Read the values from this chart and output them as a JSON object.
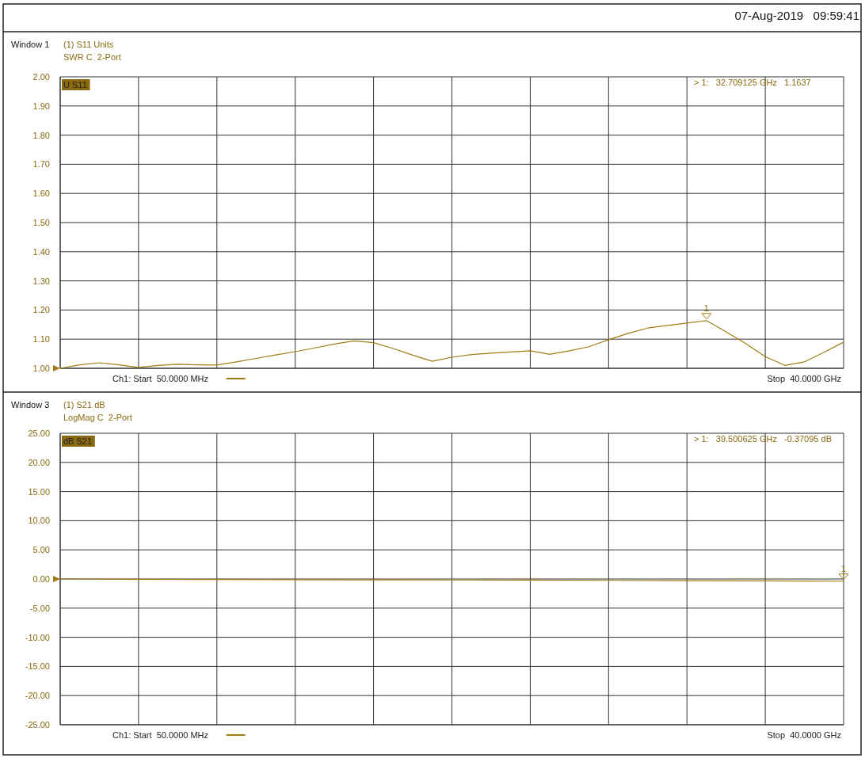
{
  "chart_data": [
    {
      "type": "line",
      "title": "Window 1",
      "categories": [
        null,
        null,
        null,
        null,
        null,
        null,
        null,
        null,
        null,
        null,
        null,
        null,
        null,
        null,
        null,
        null,
        null,
        null,
        null,
        null,
        null,
        null,
        null,
        null,
        null,
        null,
        null,
        null,
        null,
        null,
        null,
        null,
        null,
        null,
        null,
        null,
        null,
        null,
        null,
        null,
        null
      ],
      "ylim": [
        1,
        2
      ],
      "yticks": [
        {
          "value": 1,
          "label": "1.00"
        },
        {
          "value": 1.1,
          "label": "1.10"
        },
        {
          "value": 1.2,
          "label": "1.20"
        },
        {
          "value": 1.3,
          "label": "1.30"
        },
        {
          "value": 1.4,
          "label": "1.40"
        },
        {
          "value": 1.5,
          "label": "1.50"
        },
        {
          "value": 1.6,
          "label": "1.60"
        },
        {
          "value": 1.7,
          "label": "1.70"
        },
        {
          "value": 1.8,
          "label": "1.80"
        },
        {
          "value": 1.9,
          "label": "1.90"
        },
        {
          "value": 2,
          "label": "2.00"
        }
      ],
      "tick_labels": "y",
      "grid": true,
      "line_style": "solid",
      "series": [
        {
          "color": "#a07c14",
          "values": [
            1.0,
            1.012,
            1.019,
            1.012,
            1.003,
            1.01,
            1.014,
            1.012,
            1.011,
            1.022,
            1.034,
            1.046,
            1.057,
            1.07,
            1.083,
            1.094,
            1.088,
            1.068,
            1.045,
            1.024,
            1.038,
            1.047,
            1.052,
            1.056,
            1.06,
            1.048,
            1.06,
            1.074,
            1.098,
            1.12,
            1.138,
            1.147,
            1.155,
            1.1637,
            1.125,
            1.085,
            1.04,
            1.01,
            1.022,
            1.055,
            1.09
          ]
        }
      ],
      "annotations": [
        "(1) S11 Units",
        "SWR C  2-Port",
        "U S11",
        "> 1:   32.709125 GHz   1.1637",
        "Ch1: Start  50.0000 MHz",
        "Stop  40.0000 GHz",
        {
          "text": "1",
          "y": 1.1637
        },
        "07-Aug-2019   09:59:41"
      ]
    },
    {
      "type": "line",
      "title": "Window 3",
      "categories": [
        null,
        null,
        null,
        null,
        null,
        null,
        null,
        null,
        null,
        null,
        null
      ],
      "ylim": [
        -25,
        25
      ],
      "yticks": [
        {
          "value": -25,
          "label": "-25.00"
        },
        {
          "value": -20,
          "label": "-20.00"
        },
        {
          "value": -15,
          "label": "-15.00"
        },
        {
          "value": -10,
          "label": "-10.00"
        },
        {
          "value": -5,
          "label": "-5.00"
        },
        {
          "value": 0,
          "label": "0.00"
        },
        {
          "value": 5,
          "label": "5.00"
        },
        {
          "value": 10,
          "label": "10.00"
        },
        {
          "value": 15,
          "label": "15.00"
        },
        {
          "value": 20,
          "label": "20.00"
        },
        {
          "value": 25,
          "label": "25.00"
        }
      ],
      "tick_labels": "y",
      "grid": true,
      "line_style": "solid",
      "series": [
        {
          "color": "#a07c14",
          "values": [
            0,
            -0.04,
            -0.08,
            -0.11,
            -0.14,
            -0.17,
            -0.2,
            -0.24,
            -0.28,
            -0.33,
            -0.37095
          ]
        }
      ],
      "annotations": [
        "(1) S21 dB",
        "LogMag C  2-Port",
        "dB S21",
        "> 1:   39.500625 GHz   -0.37095 dB",
        "Ch1: Start  50.0000 MHz",
        "Stop  40.0000 GHz",
        {
          "text": "1",
          "y": -0.37095
        }
      ]
    }
  ]
}
